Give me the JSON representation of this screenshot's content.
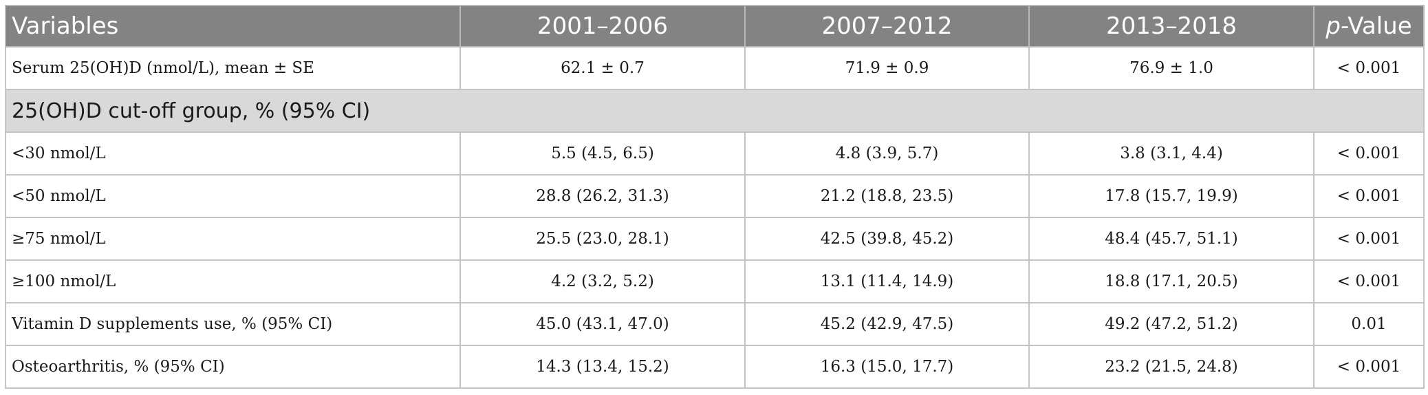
{
  "table": {
    "headers": {
      "variables": "Variables",
      "p1": "2001–2006",
      "p2": "2007–2012",
      "p3": "2013–2018",
      "p_prefix": "p",
      "p_suffix": "-Value"
    },
    "rows": [
      {
        "label": "Serum 25(OH)D (nmol/L), mean ± SE",
        "v1": "62.1 ± 0.7",
        "v2": "71.9 ± 0.9",
        "v3": "76.9 ± 1.0",
        "p": "< 0.001"
      },
      {
        "group": "25(OH)D cut-off group, % (95% CI)"
      },
      {
        "label": "<30 nmol/L",
        "v1": "5.5 (4.5, 6.5)",
        "v2": "4.8 (3.9, 5.7)",
        "v3": "3.8 (3.1, 4.4)",
        "p": "< 0.001"
      },
      {
        "label": "<50 nmol/L",
        "v1": "28.8 (26.2, 31.3)",
        "v2": "21.2 (18.8, 23.5)",
        "v3": "17.8 (15.7, 19.9)",
        "p": "< 0.001"
      },
      {
        "label": "≥75 nmol/L",
        "v1": "25.5 (23.0, 28.1)",
        "v2": "42.5 (39.8, 45.2)",
        "v3": "48.4 (45.7, 51.1)",
        "p": "< 0.001"
      },
      {
        "label": "≥100 nmol/L",
        "v1": "4.2 (3.2, 5.2)",
        "v2": "13.1 (11.4, 14.9)",
        "v3": "18.8 (17.1, 20.5)",
        "p": "< 0.001"
      },
      {
        "label": "Vitamin D supplements use, % (95% CI)",
        "v1": "45.0 (43.1, 47.0)",
        "v2": "45.2 (42.9, 47.5)",
        "v3": "49.2 (47.2, 51.2)",
        "p": "0.01"
      },
      {
        "label": "Osteoarthritis, % (95% CI)",
        "v1": "14.3 (13.4, 15.2)",
        "v2": "16.3 (15.0, 17.7)",
        "v3": "23.2 (21.5, 24.8)",
        "p": "< 0.001"
      }
    ]
  }
}
